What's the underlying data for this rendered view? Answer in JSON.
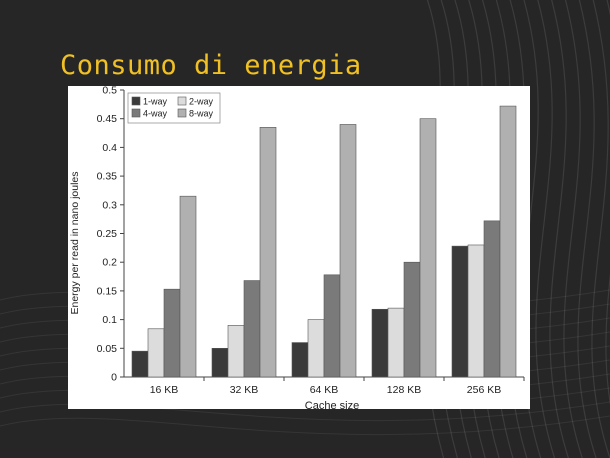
{
  "slide": {
    "title": "Consumo di energia"
  },
  "chart_data": {
    "type": "bar",
    "title": "",
    "xlabel": "Cache size",
    "ylabel": "Energy per read in nano joules",
    "ylim": [
      0,
      0.5
    ],
    "yticks": [
      "0",
      "0.05",
      "0.1",
      "0.15",
      "0.2",
      "0.25",
      "0.3",
      "0.35",
      "0.4",
      "0.45",
      "0.5"
    ],
    "categories": [
      "16 KB",
      "32 KB",
      "64 KB",
      "128 KB",
      "256 KB"
    ],
    "series": [
      {
        "name": "1-way",
        "color": "#3a3a3a",
        "values": [
          0.045,
          0.05,
          0.06,
          0.118,
          0.228
        ]
      },
      {
        "name": "2-way",
        "color": "#dcdcdc",
        "values": [
          0.084,
          0.09,
          0.1,
          0.12,
          0.23
        ]
      },
      {
        "name": "4-way",
        "color": "#7a7a7a",
        "values": [
          0.153,
          0.168,
          0.178,
          0.2,
          0.272
        ]
      },
      {
        "name": "8-way",
        "color": "#b0b0b0",
        "values": [
          0.315,
          0.435,
          0.44,
          0.45,
          0.472
        ]
      }
    ],
    "legend_position": "top-left",
    "grid": false
  }
}
